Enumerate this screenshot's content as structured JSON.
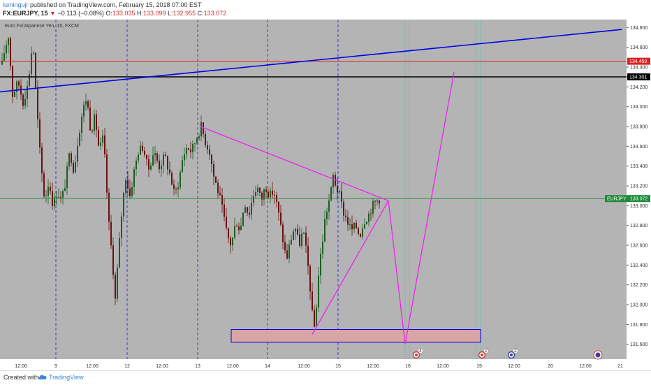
{
  "header": {
    "author": "lumingujr",
    "published": "published on TradingView.com, February 15, 2018 07:00 EST",
    "symbol": "FX:EURJPY, 15",
    "change_arrow": "▼",
    "change": "−0.113 (−0.08%)",
    "o_label": "O:",
    "o_value": "133.035",
    "h_label": "H:",
    "h_value": "133.099",
    "l_label": "L:",
    "l_value": "132.955",
    "c_label": "C:",
    "c_value": "133.072"
  },
  "footer": {
    "created_with": "Created with",
    "brand": "TradingView"
  },
  "colors": {
    "background": "#b4b4b4",
    "candle_up": "#1d5e23",
    "candle_down": "#6b1111",
    "trend_blue": "#0000e6",
    "resistance_red": "#e02020",
    "level_black": "#000000",
    "projection_magenta": "#ee22ee",
    "price_tag_green": "#1e8c3a",
    "day_separator": "#3b3bd6",
    "target_box_fill": "#d8a4a4"
  },
  "chart_data": {
    "type": "candlestick",
    "title": "Euro Fx/Japanese Yen, 15, FXCM",
    "instrument": "EURJPY",
    "timeframe": "15",
    "x_tick_labels": [
      "12:00",
      "9",
      "12:00",
      "12",
      "12:00",
      "13",
      "12:00",
      "14",
      "12:00",
      "15",
      "12:00",
      "16",
      "12:00",
      "19",
      "12:00",
      "20",
      "12:00",
      "21"
    ],
    "y_tick_labels": [
      "134.800",
      "134.600",
      "134.400",
      "134.200",
      "134.000",
      "133.800",
      "133.600",
      "133.400",
      "133.200",
      "133.000",
      "132.800",
      "132.600",
      "132.400",
      "132.200",
      "132.000",
      "131.800",
      "131.600"
    ],
    "ylim": [
      131.45,
      134.88
    ],
    "price_path": [
      [
        0,
        134.3
      ],
      [
        6,
        134.55
      ],
      [
        12,
        134.72
      ],
      [
        18,
        134.12
      ],
      [
        26,
        134.25
      ],
      [
        33,
        134.05
      ],
      [
        40,
        134.22
      ],
      [
        47,
        134.68
      ],
      [
        52,
        134.05
      ],
      [
        58,
        133.45
      ],
      [
        64,
        133.05
      ],
      [
        70,
        133.25
      ],
      [
        76,
        133.0
      ],
      [
        82,
        133.15
      ],
      [
        88,
        133.05
      ],
      [
        94,
        133.25
      ],
      [
        100,
        133.55
      ],
      [
        106,
        133.35
      ],
      [
        112,
        133.7
      ],
      [
        118,
        133.95
      ],
      [
        124,
        134.1
      ],
      [
        130,
        133.75
      ],
      [
        136,
        133.9
      ],
      [
        142,
        133.55
      ],
      [
        148,
        133.7
      ],
      [
        152,
        133.25
      ],
      [
        156,
        132.8
      ],
      [
        161,
        132.45
      ],
      [
        165,
        132.05
      ],
      [
        170,
        132.55
      ],
      [
        175,
        133.0
      ],
      [
        180,
        133.3
      ],
      [
        186,
        133.1
      ],
      [
        192,
        133.35
      ],
      [
        198,
        133.55
      ],
      [
        205,
        133.6
      ],
      [
        212,
        133.35
      ],
      [
        220,
        133.55
      ],
      [
        228,
        133.4
      ],
      [
        236,
        133.5
      ],
      [
        244,
        133.3
      ],
      [
        250,
        133.1
      ],
      [
        256,
        133.25
      ],
      [
        262,
        133.5
      ],
      [
        268,
        133.6
      ],
      [
        274,
        133.55
      ],
      [
        282,
        133.7
      ],
      [
        288,
        133.8
      ],
      [
        294,
        133.65
      ],
      [
        300,
        133.55
      ],
      [
        306,
        133.3
      ],
      [
        314,
        133.1
      ],
      [
        320,
        132.9
      ],
      [
        325,
        132.7
      ],
      [
        331,
        132.6
      ],
      [
        338,
        132.85
      ],
      [
        344,
        132.75
      ],
      [
        350,
        133.05
      ],
      [
        356,
        132.9
      ],
      [
        362,
        133.1
      ],
      [
        368,
        133.2
      ],
      [
        374,
        133.05
      ],
      [
        380,
        133.2
      ],
      [
        386,
        133.1
      ],
      [
        392,
        133.15
      ],
      [
        398,
        132.95
      ],
      [
        404,
        132.7
      ],
      [
        410,
        132.45
      ],
      [
        416,
        132.65
      ],
      [
        422,
        132.8
      ],
      [
        428,
        132.6
      ],
      [
        434,
        132.75
      ],
      [
        440,
        132.45
      ],
      [
        445,
        132.1
      ],
      [
        449,
        131.7
      ],
      [
        453,
        132.0
      ],
      [
        457,
        132.4
      ],
      [
        461,
        132.6
      ],
      [
        465,
        132.85
      ],
      [
        469,
        133.0
      ],
      [
        473,
        133.1
      ],
      [
        477,
        133.3
      ],
      [
        481,
        133.2
      ],
      [
        486,
        133.1
      ],
      [
        491,
        132.95
      ],
      [
        497,
        132.85
      ],
      [
        503,
        132.75
      ],
      [
        509,
        132.8
      ],
      [
        515,
        132.7
      ],
      [
        521,
        132.85
      ],
      [
        527,
        132.9
      ],
      [
        533,
        133.0
      ],
      [
        539,
        133.05
      ],
      [
        543,
        133.07
      ]
    ],
    "levels": [
      {
        "value": 134.459,
        "label": "134.459",
        "color": "#e02020"
      },
      {
        "value": 134.301,
        "label": "134.301",
        "color": "#000000"
      },
      {
        "value": 133.072,
        "label": "EURJPY",
        "color": "#1e8c3a"
      }
    ],
    "drawings": {
      "trendline_blue": [
        [
          0,
          134.15
        ],
        [
          890,
          134.78
        ]
      ],
      "triangle_upper": [
        [
          287,
          133.8
        ],
        [
          556,
          133.05
        ]
      ],
      "triangle_lower": [
        [
          447,
          131.7
        ],
        [
          556,
          133.05
        ]
      ],
      "projection": [
        [
          556,
          133.05
        ],
        [
          580,
          131.6
        ],
        [
          650,
          134.35
        ]
      ],
      "target_zone": {
        "x1": 331,
        "x2": 688,
        "y_top": 131.75,
        "y_bottom": 131.62
      }
    },
    "event_markers": [
      {
        "x": 596,
        "label": "4"
      },
      {
        "x": 690,
        "label": "2"
      },
      {
        "x": 732,
        "label": "2"
      },
      {
        "x": 856,
        "label": ""
      }
    ],
    "grid": false,
    "legend": "none"
  }
}
